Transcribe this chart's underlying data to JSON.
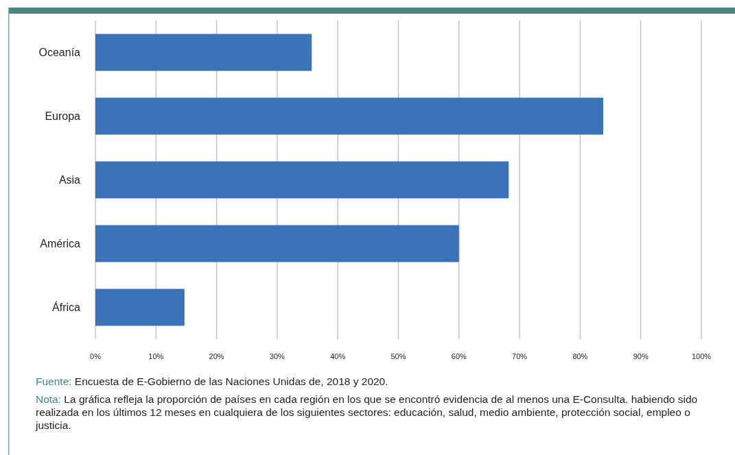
{
  "chart_data": {
    "type": "bar",
    "orientation": "horizontal",
    "categories": [
      "Oceanía",
      "Europa",
      "Asia",
      "América",
      "África"
    ],
    "values": [
      35.7,
      83.8,
      68.2,
      60.0,
      14.7
    ],
    "color": "#3b73b9",
    "xlim": [
      0,
      100
    ],
    "xticks": [
      {
        "value": 0,
        "label": "0%"
      },
      {
        "value": 10,
        "label": "10%"
      },
      {
        "value": 20,
        "label": "20%"
      },
      {
        "value": 30,
        "label": "30%"
      },
      {
        "value": 40,
        "label": "40%"
      },
      {
        "value": 50,
        "label": "50%"
      },
      {
        "value": 60,
        "label": "60%"
      },
      {
        "value": 70,
        "label": "70%"
      },
      {
        "value": 80,
        "label": "80%"
      },
      {
        "value": 90,
        "label": "90%"
      },
      {
        "value": 100,
        "label": "100%"
      }
    ],
    "grid": "x",
    "annotations": [
      "Fuente: Encuesta de E-Gobierno de las Naciones Unidas de, 2018 y 2020.",
      "Nota: La gráfica refleja la proporción de países en cada región en los que se encontró evidencia de al menos una E-Consulta. habiendo sido realizada en los últimos 12 meses en cualquiera de los siguientes sectores: educación, salud, medio ambiente, protección social, empleo o justicia."
    ]
  }
}
